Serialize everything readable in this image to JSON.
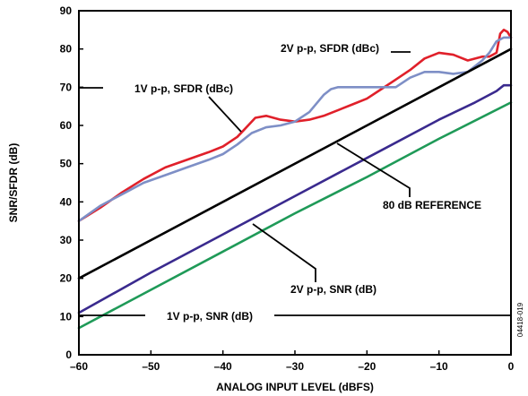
{
  "chart_data": {
    "type": "line",
    "title": "",
    "xlabel": "ANALOG INPUT LEVEL (dBFS)",
    "ylabel": "SNR/SFDR (dB)",
    "xlim": [
      -60,
      0
    ],
    "ylim": [
      0,
      90
    ],
    "x_ticks": [
      -60,
      -50,
      -40,
      -30,
      -20,
      -10,
      0
    ],
    "x_tick_labels": [
      "–60",
      "–50",
      "–40",
      "–30",
      "–20",
      "–10",
      "0"
    ],
    "y_ticks": [
      0,
      10,
      20,
      30,
      40,
      50,
      60,
      70,
      80,
      90
    ],
    "y_tick_labels": [
      "0",
      "10",
      "20",
      "30",
      "40",
      "50",
      "60",
      "70",
      "80",
      "90"
    ],
    "grid": false,
    "legend": "none",
    "figure_id": "04418-019",
    "series": [
      {
        "name": "2V p-p, SFDR (dBc)",
        "color": "#e0202a",
        "x": [
          -60,
          -57,
          -54,
          -51,
          -48,
          -45,
          -42,
          -40,
          -38,
          -37,
          -35.5,
          -34,
          -32,
          -30,
          -28,
          -26,
          -24,
          -22,
          -20,
          -18,
          -16,
          -14,
          -12,
          -10,
          -8,
          -6,
          -4,
          -3,
          -2,
          -1.5,
          -1,
          -0.5,
          0
        ],
        "y": [
          35,
          38.5,
          42.5,
          46,
          49,
          51,
          53,
          54.5,
          57,
          59,
          62,
          62.5,
          61.5,
          61,
          61.5,
          62.5,
          64,
          65.5,
          67,
          69.5,
          72,
          74.5,
          77.5,
          79,
          78.5,
          77,
          78,
          78,
          79,
          84,
          85,
          84.5,
          83
        ]
      },
      {
        "name": "1V p-p, SFDR (dBc)",
        "color": "#7e8fc6",
        "x": [
          -60,
          -57,
          -54,
          -51,
          -48,
          -45,
          -42,
          -40,
          -38,
          -36,
          -34,
          -32,
          -30,
          -28,
          -26,
          -25,
          -24,
          -22,
          -20,
          -18,
          -16,
          -14,
          -12,
          -10,
          -8,
          -6,
          -4,
          -3,
          -2,
          -1,
          0
        ],
        "y": [
          35,
          39,
          42,
          45,
          47,
          49,
          51,
          52.5,
          55,
          58,
          59.5,
          60,
          61,
          63.5,
          68,
          69.5,
          70,
          70,
          70,
          70,
          70,
          72.5,
          74,
          74,
          73.5,
          74,
          77,
          79,
          82,
          83,
          83
        ]
      },
      {
        "name": "80 dB REFERENCE",
        "color": "#000000",
        "x": [
          -60,
          0
        ],
        "y": [
          20,
          80
        ]
      },
      {
        "name": "2V p-p, SNR (dB)",
        "color": "#3a2a8e",
        "x": [
          -60,
          -50,
          -40,
          -30,
          -20,
          -10,
          -5,
          -2,
          -1,
          0
        ],
        "y": [
          11,
          21.5,
          31.5,
          41.5,
          51.5,
          61.5,
          66,
          69,
          70.5,
          70.5
        ]
      },
      {
        "name": "1V p-p, SNR (dB)",
        "color": "#1f9a58",
        "x": [
          -60,
          -50,
          -40,
          -30,
          -20,
          -10,
          0
        ],
        "y": [
          7,
          17,
          27,
          37,
          46.5,
          56.5,
          66
        ]
      }
    ],
    "annotations": [
      {
        "text": "2V p-p, SFDR (dBc)",
        "target_series": "2V p-p, SFDR (dBc)"
      },
      {
        "text": "1V p-p, SFDR (dBc)",
        "target_series": "1V p-p, SFDR (dBc)"
      },
      {
        "text": "80 dB REFERENCE",
        "target_series": "80 dB REFERENCE"
      },
      {
        "text": "2V p-p, SNR (dB)",
        "target_series": "2V p-p, SNR (dB)"
      },
      {
        "text": "1V p-p, SNR (dB)",
        "target_series": "1V p-p, SNR (dB)"
      }
    ]
  }
}
